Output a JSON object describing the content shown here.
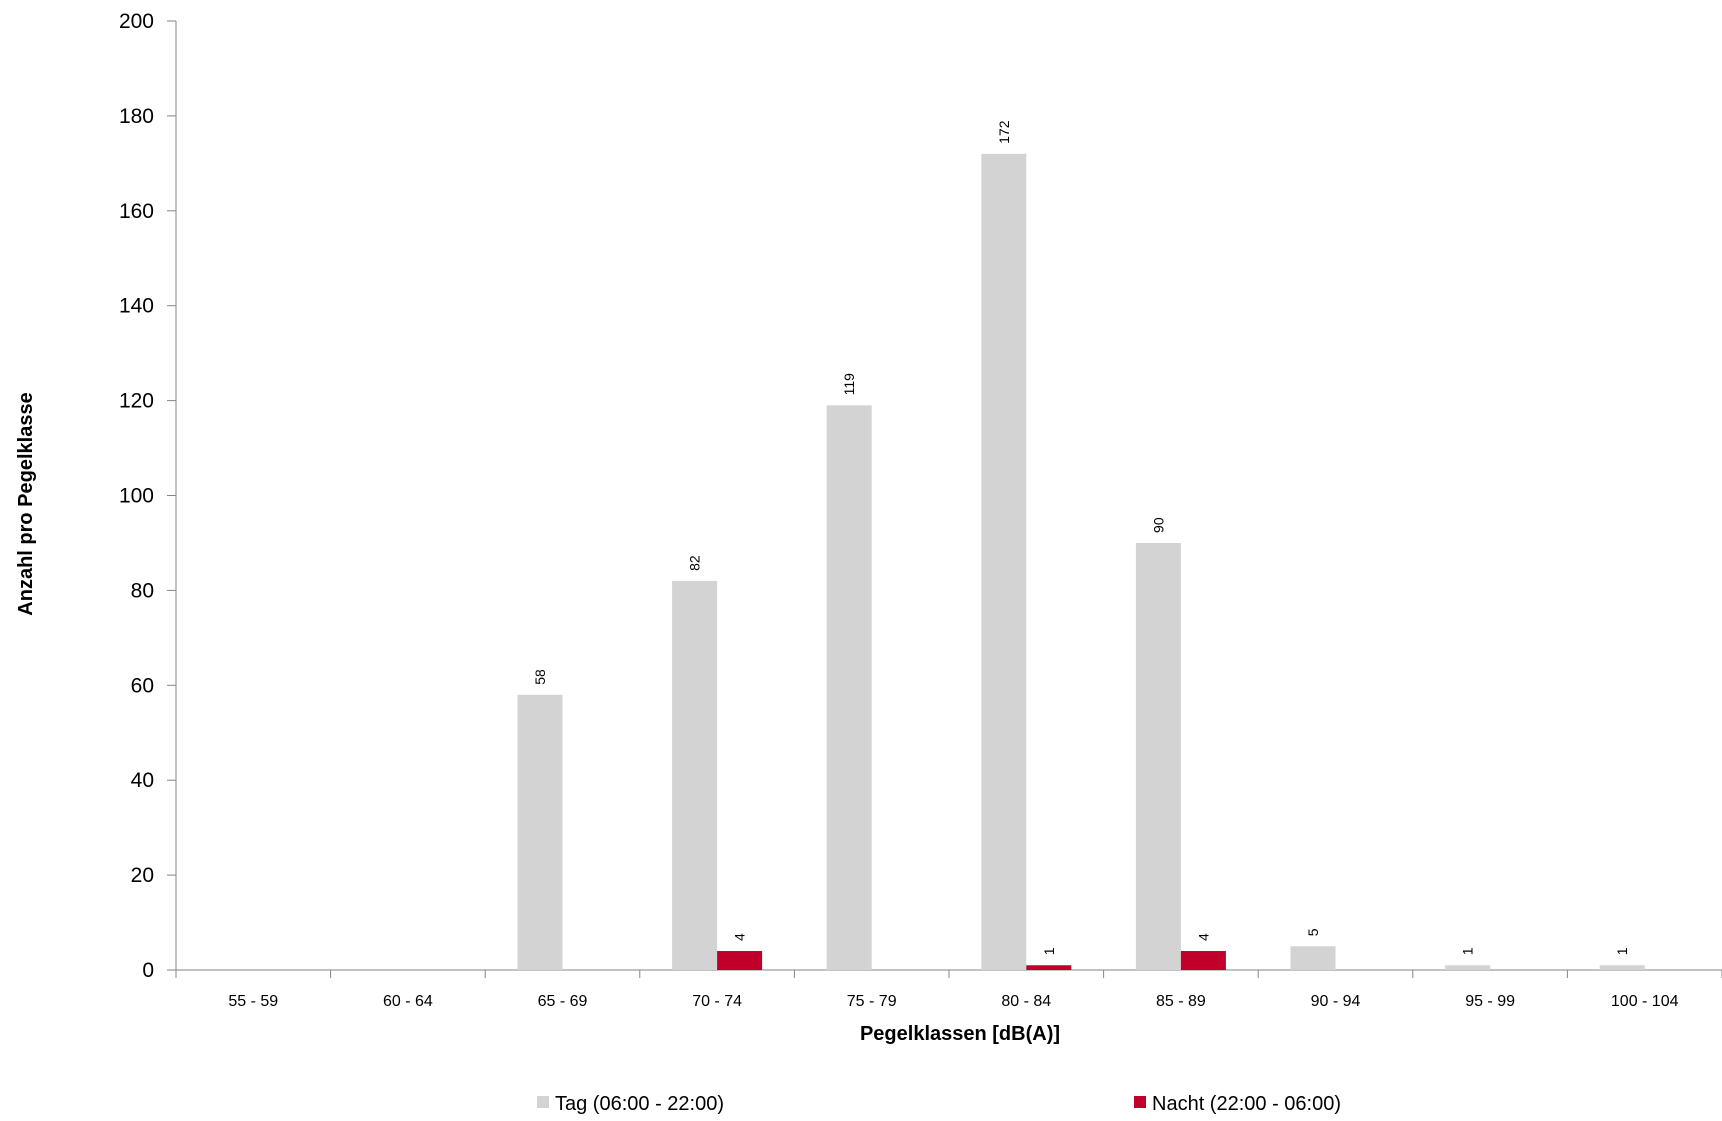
{
  "chart_data": {
    "type": "bar",
    "title": "",
    "xlabel": "Pegelklassen [dB(A)]",
    "ylabel": "Anzahl pro Pegelklasse",
    "ylim": [
      0,
      200
    ],
    "yticks": [
      0,
      20,
      40,
      60,
      80,
      100,
      120,
      140,
      160,
      180,
      200
    ],
    "grid": false,
    "legend_position": "bottom",
    "categories": [
      "55 - 59",
      "60 - 64",
      "65 - 69",
      "70 - 74",
      "75 - 79",
      "80 - 84",
      "85 - 89",
      "90 - 94",
      "95 - 99",
      "100 - 104"
    ],
    "series": [
      {
        "name": "Tag (06:00 - 22:00)",
        "color": "#D3D3D3",
        "values": [
          0,
          0,
          58,
          82,
          119,
          172,
          90,
          5,
          1,
          1
        ],
        "data_labels": [
          "",
          "",
          "58",
          "82",
          "119",
          "172",
          "90",
          "5",
          "1",
          "1"
        ]
      },
      {
        "name": "Nacht (22:00 - 06:00)",
        "color": "#C0002A",
        "values": [
          0,
          0,
          0,
          4,
          0,
          1,
          4,
          0,
          0,
          0
        ],
        "data_labels": [
          "",
          "",
          "",
          "4",
          "",
          "1",
          "4",
          "",
          "",
          ""
        ]
      }
    ]
  }
}
